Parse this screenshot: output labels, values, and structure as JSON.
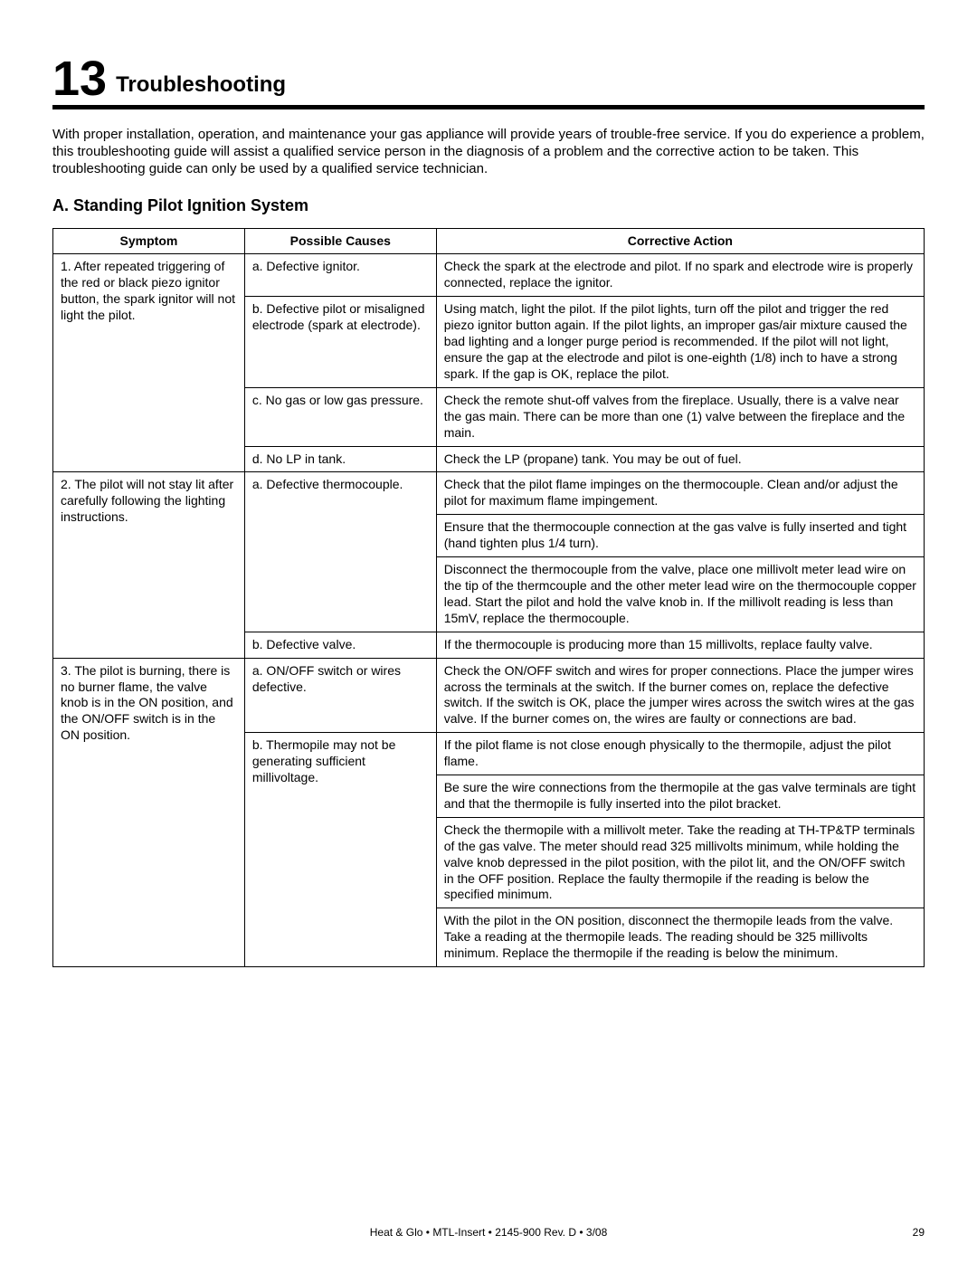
{
  "chapter": {
    "number": "13",
    "title": "Troubleshooting"
  },
  "intro": "With proper installation, operation, and maintenance your gas appliance will provide years of trouble-free service.  If you do experience a problem, this troubleshooting guide will assist a qualified service person in the diagnosis of a problem and the corrective action to be taken. This troubleshooting guide can only be used by a qualified service technician.",
  "section": {
    "label": "A.  Standing Pilot Ignition System"
  },
  "table": {
    "headers": {
      "symptom": "Symptom",
      "cause": "Possible Causes",
      "action": "Corrective Action"
    },
    "rows": {
      "r1": {
        "symptom": "1.  After repeated triggering of the red or black piezo ignitor button, the spark ignitor will not light the pilot.",
        "a": {
          "cause": "a. Defective ignitor.",
          "action": "Check the spark at the electrode and pilot. If no spark and electrode wire is properly connected, replace the ignitor."
        },
        "b": {
          "cause": "b. Defective pilot or misaligned electrode (spark at electrode).",
          "action": "Using match, light the pilot. If the pilot lights, turn off the pilot and trigger the red piezo ignitor button again. If the pilot lights, an improper gas/air mixture caused the bad lighting and a longer purge period is recommended. If the pilot will not light, ensure the gap at the electrode and pilot is one-eighth (1/8) inch to have a strong spark. If the gap is OK, replace the pilot."
        },
        "c": {
          "cause": "c. No gas or low gas pressure.",
          "action": "Check the remote shut-off valves from the fireplace. Usually, there is a valve near the gas main. There can be more than one (1) valve between the fireplace and the main."
        },
        "d": {
          "cause": "d.  No LP in tank.",
          "action": "Check the LP (propane) tank. You may be out of fuel."
        }
      },
      "r2": {
        "symptom": "2.  The pilot will not stay lit after carefully following the lighting instructions.",
        "a": {
          "cause": "a. Defective thermocouple.",
          "action1": "Check that the pilot flame impinges on the thermocouple. Clean and/or adjust the pilot for maximum flame impingement.",
          "action2": "Ensure that the thermocouple connection at the gas valve is fully inserted and tight (hand tighten plus 1/4 turn).",
          "action3": "Disconnect the thermocouple from the valve, place one millivolt meter lead wire on the tip of the thermcouple and the other meter lead wire on the thermocouple copper lead. Start the pilot and hold the valve knob in. If the millivolt reading is less than 15mV, replace the thermocouple."
        },
        "b": {
          "cause": "b.  Defective valve.",
          "action": "If the thermocouple is producing more than 15 millivolts, replace faulty valve."
        }
      },
      "r3": {
        "symptom": "3.  The pilot is burning, there is no burner flame, the valve knob is in the ON position, and the ON/OFF switch is in the ON position.",
        "a": {
          "cause": "a. ON/OFF switch or wires defective.",
          "action": "Check the ON/OFF switch and wires for proper connections. Place the jumper wires across the terminals at the switch. If the burner comes on, replace the defective switch. If the switch is OK, place the jumper wires across the switch wires at the gas valve. If the burner comes on, the wires are faulty or connections are bad."
        },
        "b": {
          "cause": "b. Thermopile may not be generating sufficient millivoltage.",
          "action1": "If the pilot flame is not close enough physically to the thermopile, adjust the pilot flame.",
          "action2": "Be sure the wire connections from the thermopile at the gas valve terminals are tight and that the thermopile is fully inserted into the pilot bracket.",
          "action3": "Check the thermopile with a millivolt meter. Take the reading at TH-TP&TP terminals of the gas valve. The meter should read 325 millivolts minimum, while holding the valve knob depressed in the pilot position, with the pilot lit, and the ON/OFF switch in the OFF position. Replace the faulty thermopile if the reading is below the specified minimum.",
          "action4": "With the pilot in the ON position, disconnect the thermopile leads from the valve. Take a reading at the thermopile leads. The reading should be 325 millivolts minimum. Replace the thermopile if the reading is below the minimum."
        }
      }
    }
  },
  "footer": {
    "center": "Heat & Glo  •  MTL-Insert  •  2145-900 Rev. D  •  3/08",
    "pagenum": "29"
  }
}
